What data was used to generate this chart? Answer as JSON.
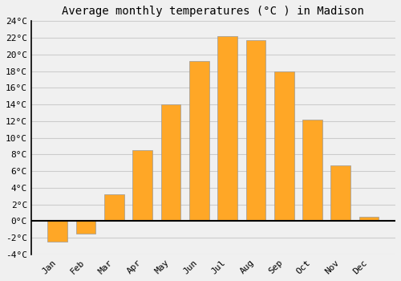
{
  "months": [
    "Jan",
    "Feb",
    "Mar",
    "Apr",
    "May",
    "Jun",
    "Jul",
    "Aug",
    "Sep",
    "Oct",
    "Nov",
    "Dec"
  ],
  "values": [
    -2.5,
    -1.5,
    3.2,
    8.5,
    14.0,
    19.2,
    22.2,
    21.7,
    18.0,
    12.2,
    6.7,
    0.5
  ],
  "bar_color": "#FFA726",
  "bar_edge_color": "#999999",
  "title": "Average monthly temperatures (°C ) in Madison",
  "ylim": [
    -4,
    24
  ],
  "yticks": [
    -4,
    -2,
    0,
    2,
    4,
    6,
    8,
    10,
    12,
    14,
    16,
    18,
    20,
    22,
    24
  ],
  "ytick_labels": [
    "-4°C",
    "-2°C",
    "0°C",
    "2°C",
    "4°C",
    "6°C",
    "8°C",
    "10°C",
    "12°C",
    "14°C",
    "16°C",
    "18°C",
    "20°C",
    "22°C",
    "24°C"
  ],
  "background_color": "#f0f0f0",
  "grid_color": "#cccccc",
  "title_fontsize": 10,
  "tick_fontsize": 8,
  "zero_line_color": "#000000",
  "bar_width": 0.7,
  "left_spine_color": "#000000"
}
